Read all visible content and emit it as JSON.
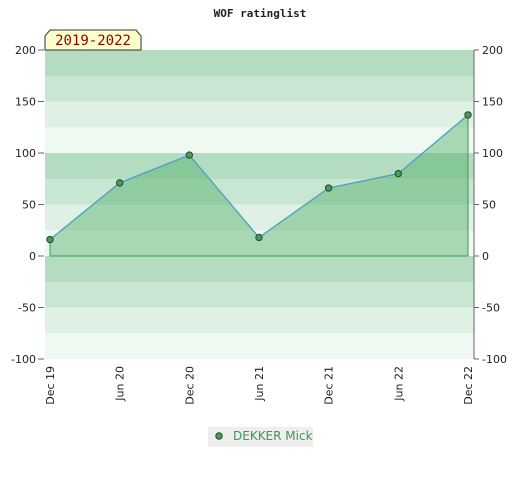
{
  "chart_data": {
    "type": "area",
    "title": "WOF ratinglist",
    "annotation": "2019-2022",
    "categories": [
      "Dec 19",
      "Jun 20",
      "Dec 20",
      "Jun 21",
      "Dec 21",
      "Jun 22",
      "Dec 22"
    ],
    "series": [
      {
        "name": "DEKKER Mick",
        "color": "#4d9dd0",
        "values": [
          16,
          71,
          98,
          18,
          66,
          80,
          137
        ]
      }
    ],
    "ylim": [
      -100,
      200
    ],
    "yticks": [
      -100,
      -50,
      0,
      50,
      100,
      150,
      200
    ],
    "y2lim": [
      -100,
      200
    ],
    "y2ticks": [
      -100,
      -50,
      0,
      50,
      100,
      150,
      200
    ]
  }
}
